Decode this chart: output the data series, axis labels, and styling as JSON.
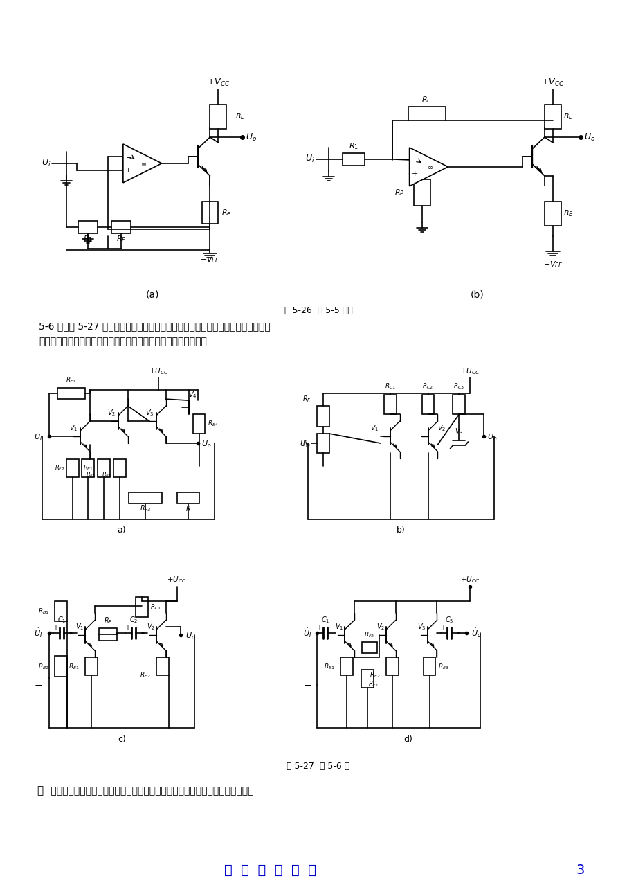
{
  "bg_color": "#ffffff",
  "page_width": 9.2,
  "page_height": 12.88,
  "dpi": 100,
  "footer_text": "教  材  配  套  课  件",
  "footer_number": "3",
  "footer_color": "#0000cc",
  "caption1": "图 5-26  题 5-5 的图",
  "section_title": "5-6 说明图 5-27 所示各电路的反馈类型，并说明哪些可以稳定输出电压；哪些可以",
  "section_title2": "稳定输出电流；哪些可以提高输入电阵；哪些可以降低输出电阵。",
  "caption2": "图 5-27  题 5-6 图",
  "solution_text": " 根据电路结构可知反馈若从输出端引出则为电压反馈，若从非输出端引出则为电"
}
